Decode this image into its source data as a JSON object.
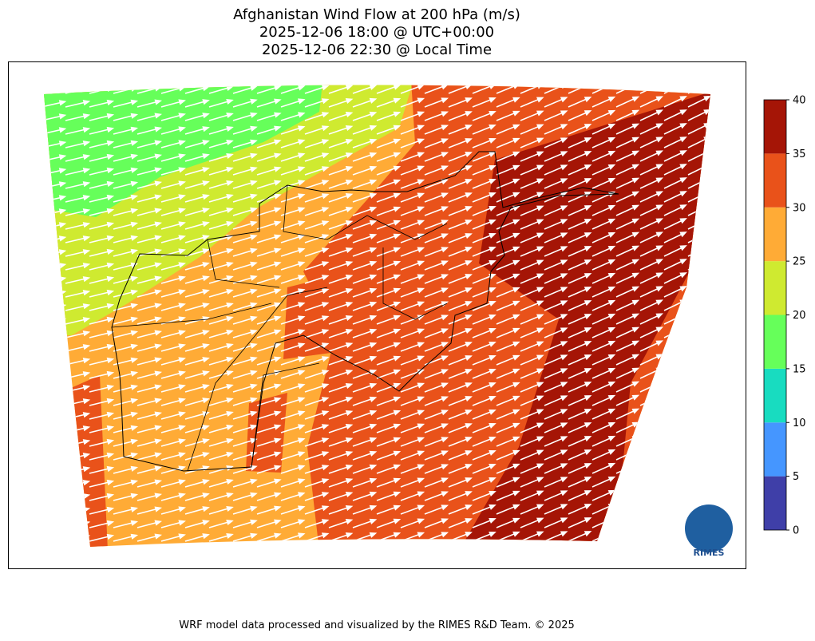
{
  "title": [
    "Afghanistan Wind Flow at 200 hPa (m/s)",
    "2025-12-06 18:00 @ UTC+00:00",
    "2025-12-06 22:30 @ Local Time"
  ],
  "colorbar": {
    "ticks": [
      0,
      5,
      10,
      15,
      20,
      25,
      30,
      35,
      40
    ],
    "colors": [
      "#3f3fa8",
      "#4596ff",
      "#18dcc0",
      "#66ff5a",
      "#cfea30",
      "#ffab36",
      "#e9521a",
      "#a51506"
    ]
  },
  "logo": "RIMES",
  "footer": "WRF model data processed and visualized by the RIMES R&D Team. © 2025"
}
